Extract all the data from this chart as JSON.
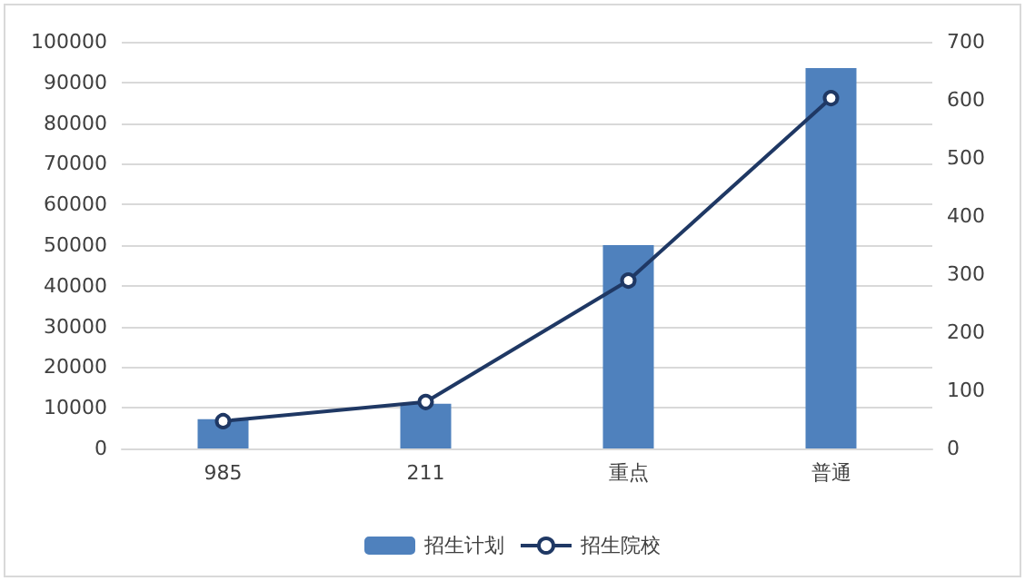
{
  "chart_data": {
    "type": "bar",
    "categories": [
      "985",
      "211",
      "重点",
      "普通"
    ],
    "series": [
      {
        "name": "招生计划",
        "type": "bar",
        "color": "#4f81bd",
        "values": [
          7200,
          11000,
          50000,
          93500
        ]
      },
      {
        "name": "招生院校",
        "type": "line",
        "axis": "y2",
        "color": "#1f3864",
        "values": [
          47,
          80,
          289,
          603
        ],
        "marker": "circle"
      }
    ],
    "ylim": [
      0,
      100000
    ],
    "yticks": [
      0,
      10000,
      20000,
      30000,
      40000,
      50000,
      60000,
      70000,
      80000,
      90000,
      100000
    ],
    "y2lim": [
      0,
      700
    ],
    "y2ticks": [
      0,
      100,
      200,
      300,
      400,
      500,
      600,
      700
    ],
    "grid": "y",
    "legend": "bottom"
  }
}
